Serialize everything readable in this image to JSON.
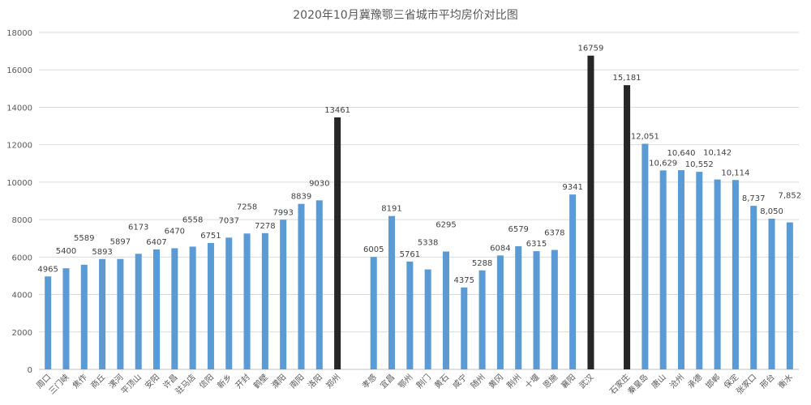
{
  "chart_data": {
    "type": "bar",
    "title": "2020年10月冀豫鄂三省城市平均房价对比图",
    "ylim": [
      0,
      18000
    ],
    "yticks": [
      0,
      2000,
      4000,
      6000,
      8000,
      10000,
      12000,
      14000,
      16000,
      18000
    ],
    "grid": true,
    "legend": "none",
    "colors": {
      "normal": "#5b9bd5",
      "capital": "#262626"
    },
    "groups": [
      {
        "thousands_separator": false,
        "categories": [
          "周口",
          "三门峡",
          "焦作",
          "商丘",
          "漯河",
          "平顶山",
          "安阳",
          "许昌",
          "驻马店",
          "信阳",
          "新乡",
          "开封",
          "鹤壁",
          "濮阳",
          "南阳",
          "洛阳",
          "郑州"
        ],
        "values": [
          4965,
          5400,
          5589,
          5893,
          5897,
          6173,
          6407,
          6470,
          6558,
          6751,
          7037,
          7258,
          7278,
          7993,
          8839,
          9030,
          13461
        ],
        "capital": "郑州"
      },
      {
        "thousands_separator": false,
        "categories": [
          "孝感",
          "宜昌",
          "鄂州",
          "荆门",
          "黄石",
          "咸宁",
          "随州",
          "黄冈",
          "荆州",
          "十堰",
          "恩施",
          "襄阳",
          "武汉"
        ],
        "values": [
          6005,
          8191,
          5761,
          5338,
          6295,
          4375,
          5288,
          6084,
          6579,
          6315,
          6378,
          9341,
          16759
        ],
        "capital": "武汉"
      },
      {
        "thousands_separator": true,
        "categories": [
          "石家庄",
          "秦皇岛",
          "唐山",
          "沧州",
          "承德",
          "邯郸",
          "保定",
          "张家口",
          "邢台",
          "衡水"
        ],
        "values": [
          15181,
          12051,
          10629,
          10640,
          10552,
          10142,
          10114,
          8737,
          8050,
          7852
        ],
        "capital": "石家庄"
      }
    ]
  }
}
